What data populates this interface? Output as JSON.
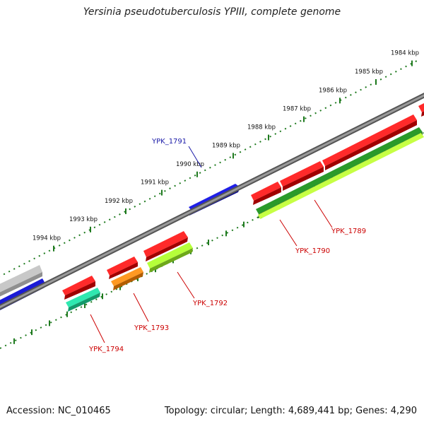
{
  "title": "Yersinia pseudotuberculosis YPIII, complete genome",
  "footer": {
    "accession": "Accession: NC_010465",
    "summary": "Topology: circular; Length: 4,689,441 bp; Genes: 4,290"
  },
  "colors": {
    "forward_label": "#1a1aa8",
    "reverse_label": "#cc0000",
    "backbone": "#777777",
    "tick": "#1e7a1e"
  },
  "kbp_labels": [
    "1984 kbp",
    "1985 kbp",
    "1986 kbp",
    "1987 kbp",
    "1988 kbp",
    "1989 kbp",
    "1990 kbp",
    "1991 kbp",
    "1992 kbp",
    "1993 kbp",
    "1994 kbp"
  ],
  "gene_labels": [
    {
      "id": "ypk1791",
      "text": "YPK_1791",
      "strand": "forward"
    },
    {
      "id": "ypk1789",
      "text": "YPK_1789",
      "strand": "reverse"
    },
    {
      "id": "ypk1790",
      "text": "YPK_1790",
      "strand": "reverse"
    },
    {
      "id": "ypk1792",
      "text": "YPK_1792",
      "strand": "reverse"
    },
    {
      "id": "ypk1793",
      "text": "YPK_1793",
      "strand": "reverse"
    },
    {
      "id": "ypk1794",
      "text": "YPK_1794",
      "strand": "reverse"
    }
  ]
}
